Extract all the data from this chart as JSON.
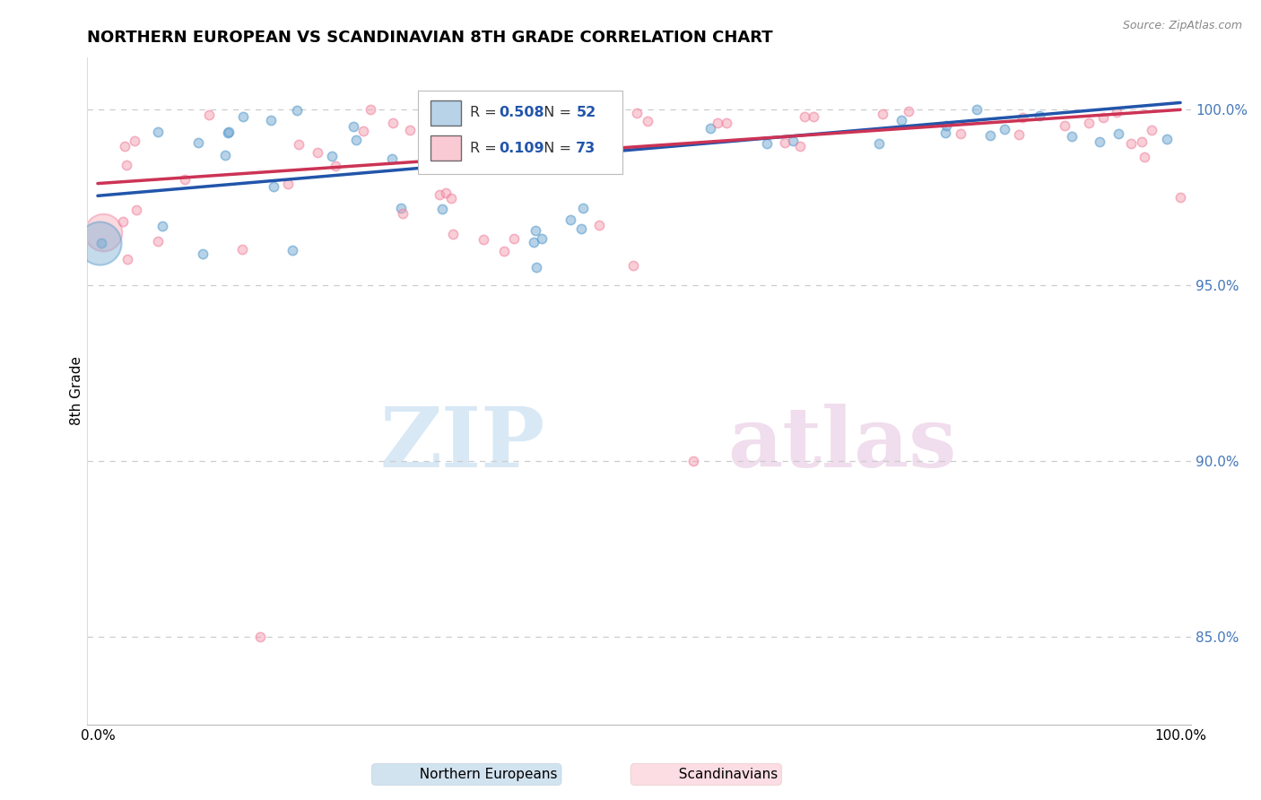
{
  "title": "NORTHERN EUROPEAN VS SCANDINAVIAN 8TH GRADE CORRELATION CHART",
  "source": "Source: ZipAtlas.com",
  "ylabel": "8th Grade",
  "y_ticks": [
    85.0,
    90.0,
    95.0,
    100.0
  ],
  "y_tick_labels": [
    "85.0%",
    "90.0%",
    "95.0%",
    "100.0%"
  ],
  "legend_bottom_blue": "Northern Europeans",
  "legend_bottom_pink": "Scandinavians",
  "blue_color": "#7EB0D5",
  "pink_color": "#F5A0B0",
  "blue_line_color": "#2255AA",
  "pink_line_color": "#CC3355",
  "blue_edge_color": "#5599CC",
  "pink_edge_color": "#EE7799",
  "R_blue": "0.508",
  "N_blue": "52",
  "R_pink": "0.109",
  "N_pink": "73",
  "ylim_min": 82.5,
  "ylim_max": 101.5,
  "xlim_min": -1,
  "xlim_max": 101,
  "blue_line_x0": 0,
  "blue_line_x1": 100,
  "blue_line_y0": 97.55,
  "blue_line_y1": 100.2,
  "pink_line_x0": 0,
  "pink_line_x1": 100,
  "pink_line_y0": 97.9,
  "pink_line_y1": 100.0,
  "watermark_zip_color": "#D8E8F5",
  "watermark_atlas_color": "#F0DDED"
}
